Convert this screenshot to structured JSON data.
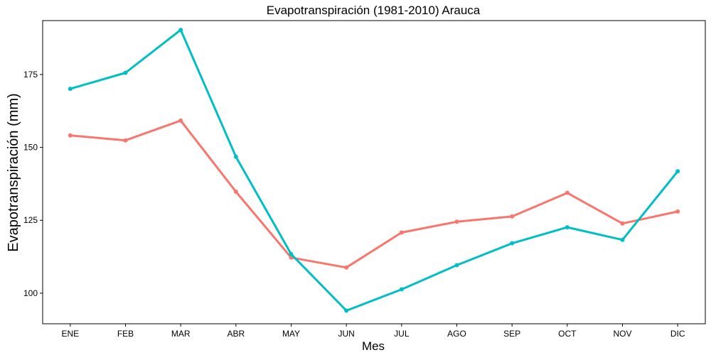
{
  "chart_data": {
    "type": "line",
    "title": "Evapotranspiración (1981-2010)  Arauca",
    "xlabel": "Mes",
    "ylabel": "Evapotranspiración (mm)",
    "categories": [
      "ENE",
      "FEB",
      "MAR",
      "ABR",
      "MAY",
      "JUN",
      "JUL",
      "AGO",
      "SEP",
      "OCT",
      "NOV",
      "DIC"
    ],
    "ylim": [
      89.5,
      193.5
    ],
    "yticks": [
      100,
      125,
      150,
      175
    ],
    "grid": false,
    "legend": "none",
    "series": [
      {
        "color": "#F8766D",
        "values": [
          154.1,
          152.4,
          159.2,
          134.8,
          112.2,
          108.8,
          120.8,
          124.5,
          126.3,
          134.4,
          123.9,
          128.0
        ]
      },
      {
        "color": "#00BFC4",
        "values": [
          170.1,
          175.6,
          190.3,
          146.8,
          113.4,
          94.0,
          101.3,
          109.6,
          117.1,
          122.6,
          118.3,
          141.8
        ]
      }
    ]
  }
}
